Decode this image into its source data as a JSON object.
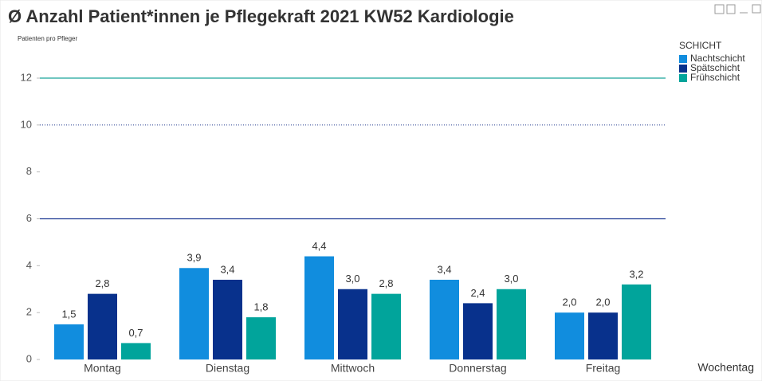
{
  "chart_data": {
    "type": "bar",
    "title": "Ø Anzahl Patient*innen je Pflegekraft 2021 KW52 Kardiologie",
    "y_label": "Patienten pro Pfleger",
    "x_label": "Wochentag",
    "legend_title": "SCHICHT",
    "legend": "top-right",
    "categories": [
      "Montag",
      "Dienstag",
      "Mittwoch",
      "Donnerstag",
      "Freitag"
    ],
    "series": [
      {
        "name": "Nachtschicht",
        "color": "#118dde",
        "values": [
          1.5,
          3.9,
          4.4,
          3.4,
          2.0
        ],
        "value_labels": [
          "1,5",
          "3,9",
          "4,4",
          "3,4",
          "2,0"
        ]
      },
      {
        "name": "Spätschicht",
        "color": "#08318c",
        "values": [
          2.8,
          3.4,
          3.0,
          2.4,
          2.0
        ],
        "value_labels": [
          "2,8",
          "3,4",
          "3,0",
          "2,4",
          "2,0"
        ]
      },
      {
        "name": "Frühschicht",
        "color": "#01a49b",
        "values": [
          0.7,
          1.8,
          2.8,
          3.0,
          3.2
        ],
        "value_labels": [
          "0,7",
          "1,8",
          "2,8",
          "3,0",
          "3,2"
        ]
      }
    ],
    "ylim": [
      0,
      12
    ],
    "yticks": [
      0,
      2,
      4,
      6,
      8,
      10,
      12
    ],
    "grid": false,
    "reference_lines": [
      {
        "value": 12,
        "color": "#1aa39a",
        "style": "solid"
      },
      {
        "value": 10,
        "color": "#3a4f9a",
        "style": "dotted"
      },
      {
        "value": 6,
        "color": "#1f3a93",
        "style": "solid"
      }
    ]
  }
}
